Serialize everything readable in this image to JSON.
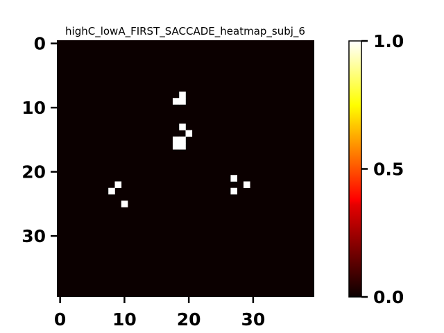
{
  "chart_data": {
    "type": "heatmap",
    "title": "highC_lowA_FIRST_SACCADE_heatmap_subj_6",
    "xlabel": "",
    "ylabel": "",
    "grid_size": [
      40,
      40
    ],
    "xlim": [
      0,
      39
    ],
    "ylim": [
      0,
      39
    ],
    "y_inverted": true,
    "x_ticks": [
      "0",
      "10",
      "20",
      "30"
    ],
    "y_ticks": [
      "0",
      "10",
      "20",
      "30"
    ],
    "x_tick_values": [
      0,
      10,
      20,
      30
    ],
    "y_tick_values": [
      0,
      10,
      20,
      30
    ],
    "background_value": 0.0,
    "cells": [
      {
        "x": 19,
        "y": 8,
        "value": 1.0
      },
      {
        "x": 18,
        "y": 9,
        "value": 1.0
      },
      {
        "x": 19,
        "y": 9,
        "value": 1.0
      },
      {
        "x": 19,
        "y": 13,
        "value": 1.0
      },
      {
        "x": 20,
        "y": 14,
        "value": 1.0
      },
      {
        "x": 18,
        "y": 15,
        "value": 1.0
      },
      {
        "x": 19,
        "y": 15,
        "value": 1.0
      },
      {
        "x": 18,
        "y": 16,
        "value": 1.0
      },
      {
        "x": 19,
        "y": 16,
        "value": 1.0
      },
      {
        "x": 27,
        "y": 21,
        "value": 1.0
      },
      {
        "x": 9,
        "y": 22,
        "value": 1.0
      },
      {
        "x": 29,
        "y": 22,
        "value": 1.0
      },
      {
        "x": 8,
        "y": 23,
        "value": 1.0
      },
      {
        "x": 27,
        "y": 23,
        "value": 1.0
      },
      {
        "x": 10,
        "y": 25,
        "value": 1.0
      }
    ],
    "colormap": "hot",
    "colorbar": {
      "range": [
        0.0,
        1.0
      ],
      "ticks": [
        "0.0",
        "0.5",
        "1.0"
      ],
      "tick_values": [
        0.0,
        0.5,
        1.0
      ],
      "stops": [
        {
          "offset": 0.0,
          "color": "#0b0000"
        },
        {
          "offset": 0.36,
          "color": "#e50000"
        },
        {
          "offset": 0.38,
          "color": "#ff0000"
        },
        {
          "offset": 0.75,
          "color": "#ffff00"
        },
        {
          "offset": 1.0,
          "color": "#ffffff"
        }
      ]
    },
    "low_color": "#0b0000",
    "high_color": "#ffffff"
  }
}
